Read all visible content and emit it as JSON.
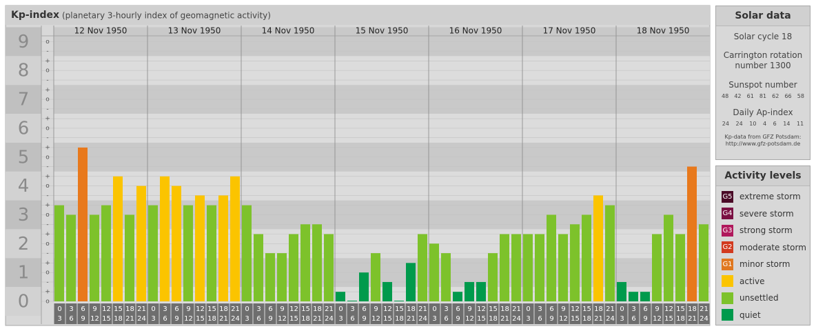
{
  "chart_data": {
    "type": "bar",
    "title": "Kp-index",
    "subtitle": "(planetary 3-hourly index of geomagnetic activity)",
    "ylim": [
      0,
      9.2
    ],
    "yticks": [
      0,
      1,
      2,
      3,
      4,
      5,
      6,
      7,
      8,
      9
    ],
    "yminor": [
      {
        "value": 0,
        "label": "o"
      },
      {
        "value": 0.33,
        "label": "+"
      },
      {
        "value": 0.67,
        "label": "-"
      },
      {
        "value": 1,
        "label": "o"
      },
      {
        "value": 1.33,
        "label": "+"
      },
      {
        "value": 1.67,
        "label": "-"
      },
      {
        "value": 2,
        "label": "o"
      },
      {
        "value": 2.33,
        "label": "+"
      },
      {
        "value": 2.67,
        "label": "-"
      },
      {
        "value": 3,
        "label": "o"
      },
      {
        "value": 3.33,
        "label": "+"
      },
      {
        "value": 3.67,
        "label": "-"
      },
      {
        "value": 4,
        "label": "o"
      },
      {
        "value": 4.33,
        "label": "+"
      },
      {
        "value": 4.67,
        "label": "-"
      },
      {
        "value": 5,
        "label": "o"
      },
      {
        "value": 5.33,
        "label": "+"
      },
      {
        "value": 5.67,
        "label": "-"
      },
      {
        "value": 6,
        "label": "o"
      },
      {
        "value": 6.33,
        "label": "+"
      },
      {
        "value": 6.67,
        "label": "-"
      },
      {
        "value": 7,
        "label": "o"
      },
      {
        "value": 7.33,
        "label": "+"
      },
      {
        "value": 7.67,
        "label": "-"
      },
      {
        "value": 8,
        "label": "o"
      },
      {
        "value": 8.33,
        "label": "+"
      },
      {
        "value": 8.67,
        "label": "-"
      },
      {
        "value": 9,
        "label": "o"
      }
    ],
    "hours": [
      [
        "0",
        "3"
      ],
      [
        "3",
        "6"
      ],
      [
        "6",
        "9"
      ],
      [
        "9",
        "12"
      ],
      [
        "12",
        "15"
      ],
      [
        "15",
        "18"
      ],
      [
        "18",
        "21"
      ],
      [
        "21",
        "24"
      ]
    ],
    "days": [
      {
        "date": "12 Nov 1950",
        "values": [
          3.33,
          3,
          5.33,
          3,
          3.33,
          4.33,
          3,
          4
        ],
        "colors": [
          "#7dc22b",
          "#7dc22b",
          "#e8791c",
          "#7dc22b",
          "#7dc22b",
          "#fbc400",
          "#7dc22b",
          "#fbc400"
        ]
      },
      {
        "date": "13 Nov 1950",
        "values": [
          3.33,
          4.33,
          4,
          3.33,
          3.67,
          3.33,
          3.67,
          4.33
        ],
        "colors": [
          "#7dc22b",
          "#fbc400",
          "#fbc400",
          "#7dc22b",
          "#fbc400",
          "#7dc22b",
          "#fbc400",
          "#fbc400"
        ]
      },
      {
        "date": "14 Nov 1950",
        "values": [
          3.33,
          2.33,
          1.67,
          1.67,
          2.33,
          2.67,
          2.67,
          2.33
        ],
        "colors": [
          "#7dc22b",
          "#7dc22b",
          "#7dc22b",
          "#7dc22b",
          "#7dc22b",
          "#7dc22b",
          "#7dc22b",
          "#7dc22b"
        ]
      },
      {
        "date": "15 Nov 1950",
        "values": [
          0.33,
          0,
          1,
          1.67,
          0.67,
          0,
          1.33,
          2.33
        ],
        "colors": [
          "#009a4c",
          "#009a4c",
          "#009a4c",
          "#7dc22b",
          "#009a4c",
          "#009a4c",
          "#009a4c",
          "#7dc22b"
        ]
      },
      {
        "date": "16 Nov 1950",
        "values": [
          2,
          1.67,
          0.33,
          0.67,
          0.67,
          1.67,
          2.33,
          2.33
        ],
        "colors": [
          "#7dc22b",
          "#7dc22b",
          "#009a4c",
          "#009a4c",
          "#009a4c",
          "#7dc22b",
          "#7dc22b",
          "#7dc22b"
        ]
      },
      {
        "date": "17 Nov 1950",
        "values": [
          2.33,
          2.33,
          3,
          2.33,
          2.67,
          3,
          3.67,
          3.33
        ],
        "colors": [
          "#7dc22b",
          "#7dc22b",
          "#7dc22b",
          "#7dc22b",
          "#7dc22b",
          "#7dc22b",
          "#fbc400",
          "#7dc22b"
        ]
      },
      {
        "date": "18 Nov 1950",
        "values": [
          0.67,
          0.33,
          0.33,
          2.33,
          3,
          2.33,
          4.67,
          2.67
        ],
        "colors": [
          "#009a4c",
          "#009a4c",
          "#009a4c",
          "#7dc22b",
          "#7dc22b",
          "#7dc22b",
          "#e8791c",
          "#7dc22b"
        ]
      }
    ]
  },
  "solar_data": {
    "title": "Solar data",
    "cycle": "Solar cycle 18",
    "carrington": "Carrington rotation number 1300",
    "sunspot_title": "Sunspot number",
    "sunspot": [
      48,
      42,
      61,
      81,
      62,
      66,
      58
    ],
    "ap_title": "Daily Ap-index",
    "ap": [
      24,
      24,
      10,
      4,
      6,
      14,
      11
    ],
    "source": "Kp-data from GFZ Potsdam:",
    "url": "http://www.gfz-potsdam.de"
  },
  "activity_levels": {
    "title": "Activity levels",
    "levels": [
      {
        "badge": "G5",
        "label": "extreme storm",
        "color": "#4a0a26"
      },
      {
        "badge": "G4",
        "label": "severe storm",
        "color": "#7a1042"
      },
      {
        "badge": "G3",
        "label": "strong storm",
        "color": "#b0195c"
      },
      {
        "badge": "G2",
        "label": "moderate storm",
        "color": "#d23a1e"
      },
      {
        "badge": "G1",
        "label": "minor storm",
        "color": "#e07820"
      },
      {
        "badge": null,
        "label": "active",
        "color": "#fbc400"
      },
      {
        "badge": null,
        "label": "unsettled",
        "color": "#7dc22b"
      },
      {
        "badge": null,
        "label": "quiet",
        "color": "#009a4c"
      }
    ]
  }
}
